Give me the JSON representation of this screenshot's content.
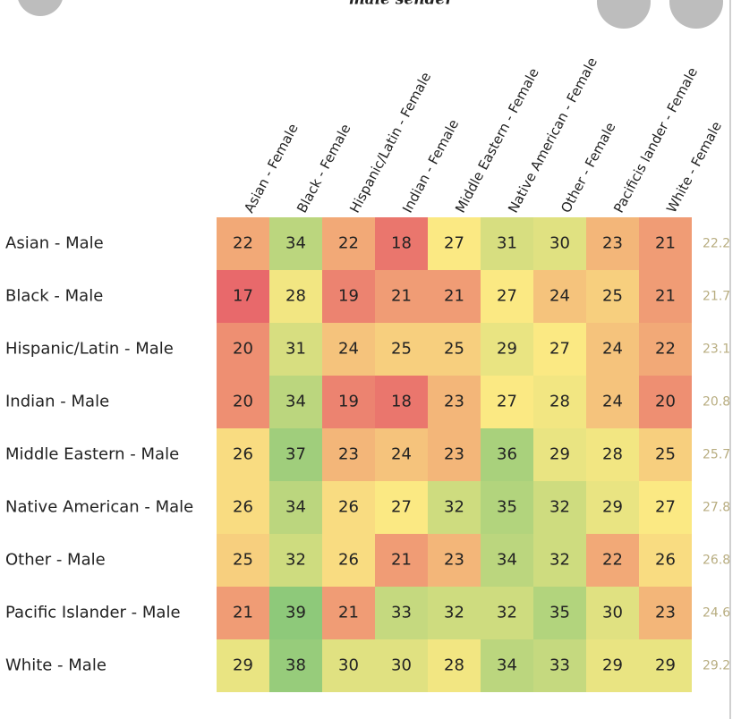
{
  "chart_data": {
    "type": "heatmap",
    "title": "male sender",
    "x_categories": [
      "Asian - Female",
      "Black - Female",
      "Hispanic/Latin - Female",
      "Indian - Female",
      "Middle Eastern - Female",
      "Native American - Female",
      "Other - Female",
      "Pacificis lander - Female",
      "White - Female"
    ],
    "y_categories": [
      "Asian - Male",
      "Black - Male",
      "Hispanic/Latin - Male",
      "Indian - Male",
      "Middle Eastern - Male",
      "Native American - Male",
      "Other - Male",
      "Pacific Islander - Male",
      "White - Male"
    ],
    "values": [
      [
        22,
        34,
        22,
        18,
        27,
        31,
        30,
        23,
        21
      ],
      [
        17,
        28,
        19,
        21,
        21,
        27,
        24,
        25,
        21
      ],
      [
        20,
        31,
        24,
        25,
        25,
        29,
        27,
        24,
        22
      ],
      [
        20,
        34,
        19,
        18,
        23,
        27,
        28,
        24,
        20
      ],
      [
        26,
        37,
        23,
        24,
        23,
        36,
        29,
        28,
        25
      ],
      [
        26,
        34,
        26,
        27,
        32,
        35,
        32,
        29,
        27
      ],
      [
        25,
        32,
        26,
        21,
        23,
        34,
        32,
        22,
        26
      ],
      [
        21,
        39,
        21,
        33,
        32,
        32,
        35,
        30,
        23
      ],
      [
        29,
        38,
        30,
        30,
        28,
        34,
        33,
        29,
        29
      ]
    ],
    "row_values": [
      22.2,
      21.7,
      23.1,
      20.8,
      25.7,
      27.8,
      26.8,
      24.6,
      29.2
    ],
    "colors": [
      "#e8696b",
      "#fbe983",
      "#8ec97a"
    ]
  }
}
